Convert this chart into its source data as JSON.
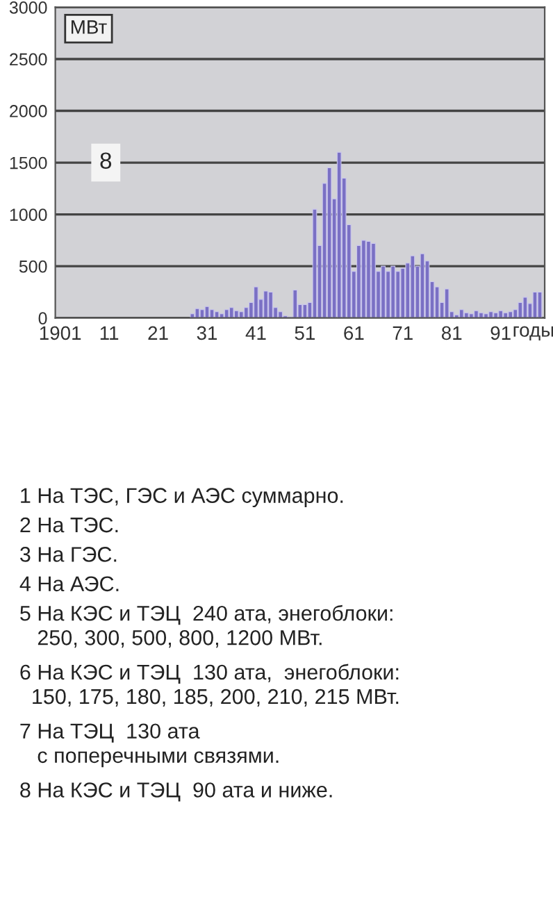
{
  "chart_data": {
    "type": "bar",
    "xlabel": "годы",
    "x": [
      1928,
      1929,
      1930,
      1931,
      1932,
      1933,
      1934,
      1935,
      1936,
      1937,
      1938,
      1939,
      1940,
      1941,
      1942,
      1943,
      1944,
      1945,
      1946,
      1947,
      1948,
      1949,
      1950,
      1951,
      1952,
      1953,
      1954,
      1955,
      1956,
      1957,
      1958,
      1959,
      1960,
      1961,
      1962,
      1963,
      1964,
      1965,
      1966,
      1967,
      1968,
      1969,
      1970,
      1971,
      1972,
      1973,
      1974,
      1975,
      1976,
      1977,
      1978,
      1979,
      1980,
      1981,
      1982,
      1983,
      1984,
      1985,
      1986,
      1987,
      1988,
      1989,
      1990,
      1991,
      1992,
      1993,
      1994,
      1995,
      1996,
      1997,
      1998,
      1999
    ],
    "values": [
      40,
      90,
      80,
      110,
      80,
      60,
      40,
      80,
      100,
      70,
      60,
      100,
      150,
      300,
      180,
      260,
      250,
      100,
      60,
      20,
      10,
      270,
      130,
      130,
      150,
      1050,
      700,
      1300,
      1450,
      1150,
      1600,
      1350,
      900,
      450,
      700,
      750,
      740,
      720,
      450,
      500,
      450,
      500,
      450,
      480,
      530,
      600,
      500,
      620,
      550,
      350,
      300,
      150,
      280,
      60,
      30,
      80,
      50,
      40,
      70,
      50,
      40,
      60,
      50,
      70,
      50,
      60,
      80,
      150,
      200,
      140,
      250,
      250
    ],
    "color": "#7a70c4",
    "xlim": [
      1900,
      2000
    ],
    "xticks": [
      {
        "value": 1901,
        "label": "1901"
      },
      {
        "value": 1911,
        "label": "11"
      },
      {
        "value": 1921,
        "label": "21"
      },
      {
        "value": 1931,
        "label": "31"
      },
      {
        "value": 1941,
        "label": "41"
      },
      {
        "value": 1951,
        "label": "51"
      },
      {
        "value": 1961,
        "label": "61"
      },
      {
        "value": 1971,
        "label": "71"
      },
      {
        "value": 1981,
        "label": "81"
      },
      {
        "value": 1991,
        "label": "91"
      }
    ],
    "ylim": [
      0,
      3000
    ],
    "yticks": [
      0,
      500,
      1000,
      1500,
      2000,
      2500,
      3000
    ],
    "grid": "y",
    "annotations": [
      "МВт",
      "8",
      "1 На ТЭС, ГЭС и АЭС суммарно.",
      "2 На ТЭС.",
      "3 На ГЭС.",
      "4 На АЭС.",
      "5 На КЭС и ТЭЦ  240 ата, энегоблоки:\n   250, 300, 500, 800, 1200 МВт.",
      "6 На КЭС и ТЭЦ  130 ата,  энегоблоки:\n  150, 175, 180, 185, 200, 210, 215 МВт.",
      "7 На ТЭЦ  130 ата\n   с поперечными связями.",
      "8 На КЭС и ТЭЦ  90 ата и ниже."
    ]
  }
}
